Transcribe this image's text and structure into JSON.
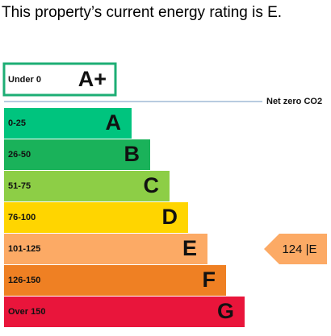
{
  "title": "This property’s current energy rating is E.",
  "top_band": {
    "range": "Under 0",
    "letter": "A+",
    "color": "#1dae74"
  },
  "net_zero_label": "Net zero CO2",
  "bands": [
    {
      "range": "0-25",
      "letter": "A",
      "color": "#00c47e"
    },
    {
      "range": "26-50",
      "letter": "B",
      "color": "#1ab25a"
    },
    {
      "range": "51-75",
      "letter": "C",
      "color": "#8dce46"
    },
    {
      "range": "76-100",
      "letter": "D",
      "color": "#ffd500"
    },
    {
      "range": "101-125",
      "letter": "E",
      "color": "#fcaa65"
    },
    {
      "range": "126-150",
      "letter": "F",
      "color": "#ef8023"
    },
    {
      "range": "Over 150",
      "letter": "G",
      "color": "#e9153b"
    }
  ],
  "current": {
    "text": "124 |E",
    "band_index": 4
  }
}
